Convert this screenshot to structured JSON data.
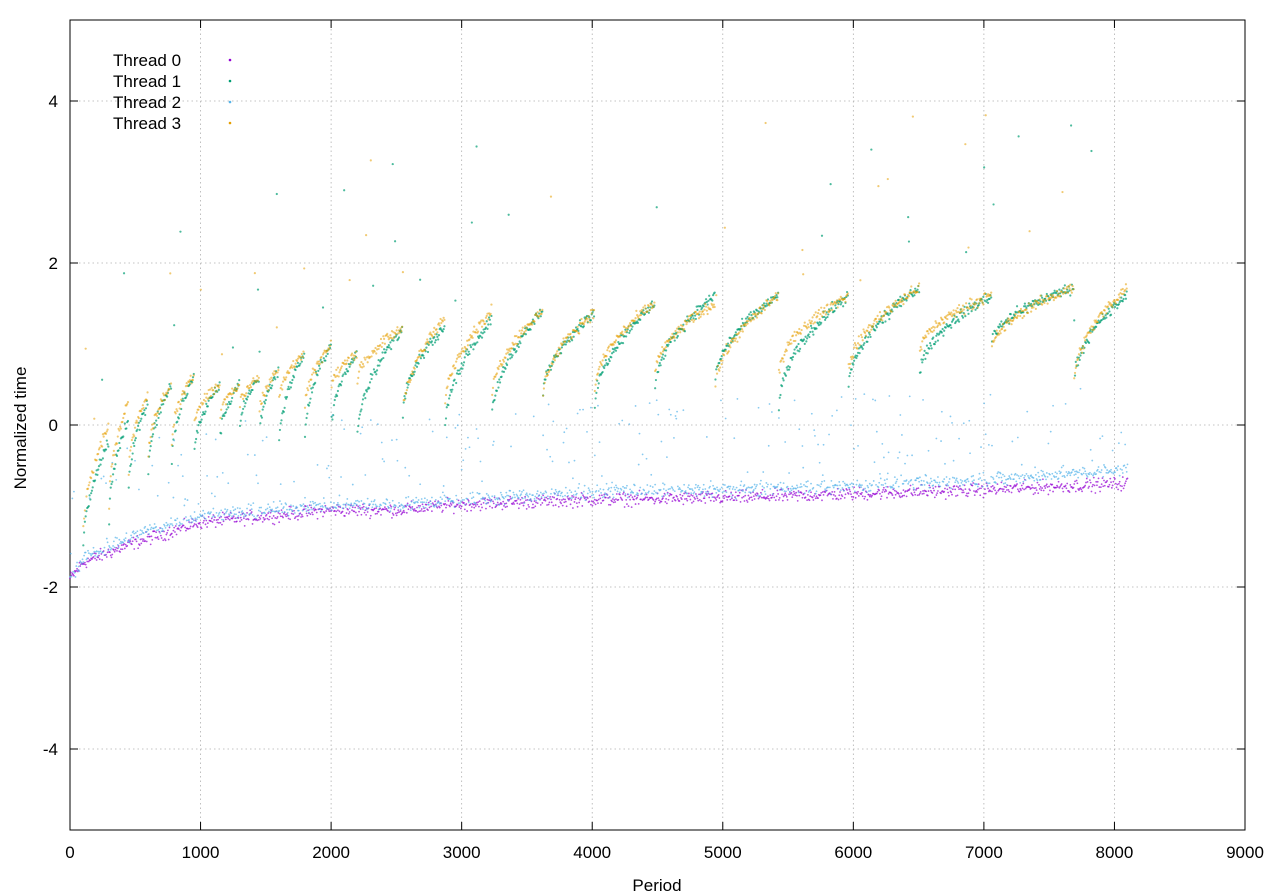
{
  "chart_data": {
    "type": "scatter",
    "title": "",
    "xlabel": "Period",
    "ylabel": "Normalized time",
    "xlim": [
      0,
      9000
    ],
    "ylim": [
      -5,
      5
    ],
    "x_ticks": [
      0,
      1000,
      2000,
      3000,
      4000,
      5000,
      6000,
      7000,
      8000,
      9000
    ],
    "y_ticks": [
      -4,
      -2,
      0,
      2,
      4
    ],
    "grid": true,
    "legend_position": "top-left",
    "colors": {
      "Thread 0": "#9400d3",
      "Thread 1": "#009e73",
      "Thread 2": "#56b4e9",
      "Thread 3": "#e69f00"
    },
    "series": [
      {
        "name": "Thread 0",
        "color": "#9400d3",
        "x_range": [
          0,
          8100
        ],
        "trend": [
          [
            0,
            -1.9
          ],
          [
            100,
            -1.7
          ],
          [
            500,
            -1.45
          ],
          [
            1000,
            -1.2
          ],
          [
            2000,
            -1.05
          ],
          [
            2500,
            -1.05
          ],
          [
            3000,
            -0.98
          ],
          [
            4000,
            -0.92
          ],
          [
            5000,
            -0.9
          ],
          [
            6000,
            -0.85
          ],
          [
            7000,
            -0.8
          ],
          [
            8100,
            -0.72
          ]
        ]
      },
      {
        "name": "Thread 1",
        "color": "#009e73",
        "x_range": [
          0,
          8100
        ],
        "cycles": [
          [
            100,
            300,
            -1.6,
            -0.2
          ],
          [
            300,
            450,
            -1.2,
            0.1
          ],
          [
            450,
            600,
            -0.8,
            0.3
          ],
          [
            600,
            780,
            -0.6,
            0.5
          ],
          [
            780,
            950,
            -0.5,
            0.6
          ],
          [
            950,
            1150,
            -0.4,
            0.5
          ],
          [
            1150,
            1300,
            -0.2,
            0.5
          ],
          [
            1300,
            1450,
            -0.1,
            0.6
          ],
          [
            1450,
            1600,
            -0.2,
            0.7
          ],
          [
            1600,
            1800,
            -0.3,
            0.9
          ],
          [
            1800,
            2000,
            -0.2,
            1.0
          ],
          [
            2000,
            2200,
            -0.1,
            0.9
          ],
          [
            2200,
            2550,
            -0.2,
            1.2
          ],
          [
            2550,
            2870,
            0.1,
            1.2
          ],
          [
            2870,
            3230,
            -0.1,
            1.3
          ],
          [
            3230,
            3620,
            0.0,
            1.4
          ],
          [
            3620,
            4020,
            0.3,
            1.4
          ],
          [
            4020,
            4480,
            0.2,
            1.5
          ],
          [
            4480,
            4940,
            0.4,
            1.6
          ],
          [
            4940,
            5430,
            0.5,
            1.6
          ],
          [
            5430,
            5960,
            0.2,
            1.6
          ],
          [
            5960,
            6510,
            0.4,
            1.7
          ],
          [
            6510,
            7060,
            0.6,
            1.6
          ],
          [
            7060,
            7690,
            1.0,
            1.7
          ],
          [
            7690,
            8100,
            0.5,
            1.6
          ]
        ]
      },
      {
        "name": "Thread 2",
        "color": "#56b4e9",
        "x_range": [
          0,
          8100
        ],
        "trend": [
          [
            0,
            -1.9
          ],
          [
            100,
            -1.65
          ],
          [
            500,
            -1.35
          ],
          [
            1000,
            -1.12
          ],
          [
            2000,
            -0.98
          ],
          [
            2500,
            -0.98
          ],
          [
            3000,
            -0.92
          ],
          [
            4000,
            -0.82
          ],
          [
            5000,
            -0.8
          ],
          [
            6000,
            -0.75
          ],
          [
            7000,
            -0.68
          ],
          [
            8100,
            -0.55
          ]
        ]
      },
      {
        "name": "Thread 3",
        "color": "#e69f00",
        "x_range": [
          0,
          8100
        ],
        "cycles": [
          [
            100,
            300,
            -1.4,
            0.0
          ],
          [
            300,
            450,
            -1.0,
            0.3
          ],
          [
            450,
            600,
            -0.6,
            0.4
          ],
          [
            600,
            780,
            -0.4,
            0.5
          ],
          [
            780,
            950,
            -0.2,
            0.6
          ],
          [
            950,
            1150,
            0.0,
            0.5
          ],
          [
            1150,
            1300,
            0.1,
            0.5
          ],
          [
            1300,
            1450,
            0.2,
            0.6
          ],
          [
            1450,
            1600,
            0.1,
            0.7
          ],
          [
            1600,
            1800,
            0.3,
            0.9
          ],
          [
            1800,
            2000,
            0.2,
            1.0
          ],
          [
            2000,
            2200,
            0.4,
            0.9
          ],
          [
            2200,
            2550,
            0.5,
            1.2
          ],
          [
            2550,
            2870,
            0.1,
            1.3
          ],
          [
            2870,
            3230,
            0.2,
            1.4
          ],
          [
            3230,
            3620,
            0.3,
            1.4
          ],
          [
            3620,
            4020,
            0.3,
            1.4
          ],
          [
            4020,
            4480,
            0.4,
            1.5
          ],
          [
            4480,
            4940,
            0.6,
            1.5
          ],
          [
            4940,
            5430,
            0.4,
            1.6
          ],
          [
            5430,
            5960,
            0.6,
            1.6
          ],
          [
            5960,
            6510,
            0.6,
            1.7
          ],
          [
            6510,
            7060,
            0.9,
            1.6
          ],
          [
            7060,
            7690,
            0.9,
            1.7
          ],
          [
            7690,
            8100,
            0.5,
            1.7
          ]
        ]
      }
    ]
  }
}
